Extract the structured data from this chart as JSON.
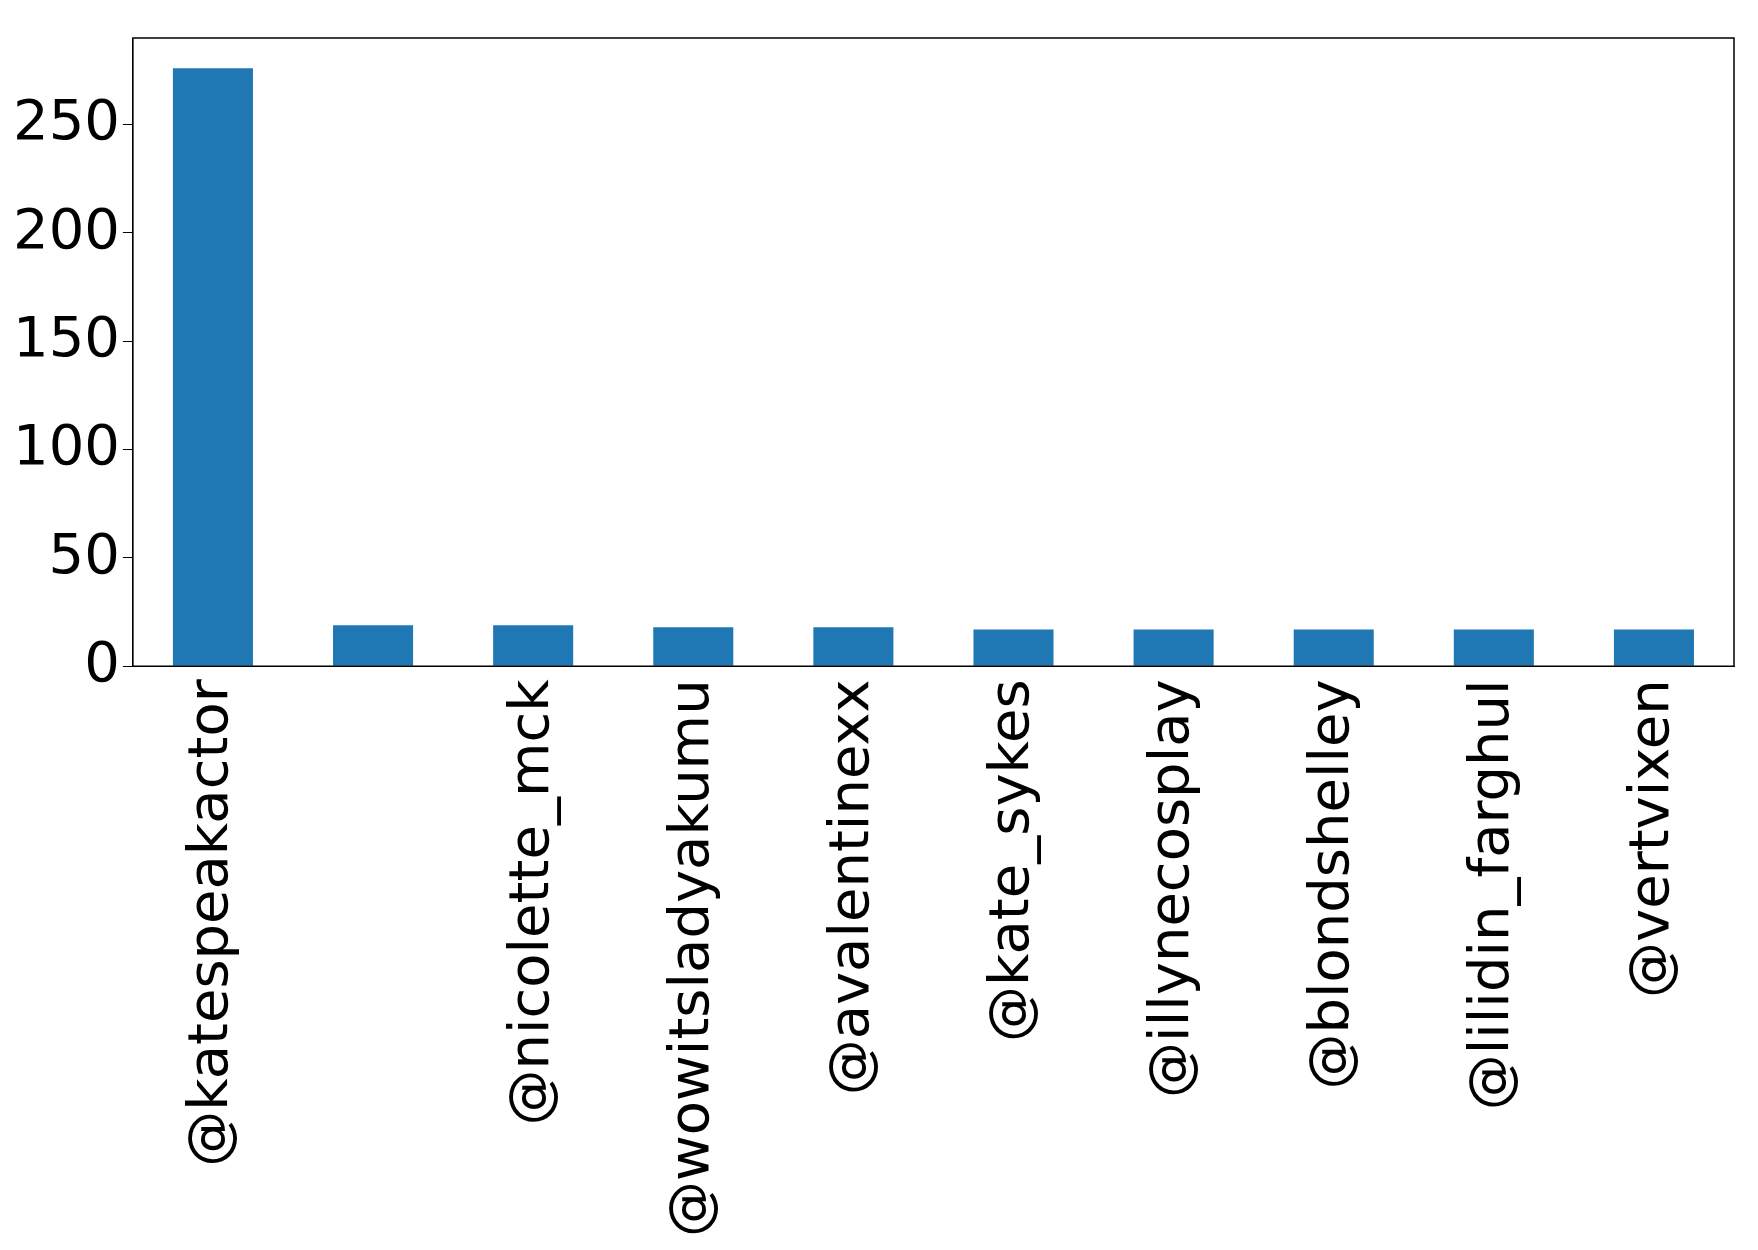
{
  "chart_data": {
    "type": "bar",
    "categories": [
      "@katespeakactor",
      null,
      "@nicolette_mck",
      "@wowitsladyakumu",
      "@avalentinexx",
      "@kate_sykes",
      "@illynecosplay",
      "@blondshelley",
      "@lilidin_farghul",
      "@vertvixen"
    ],
    "values": [
      276,
      19,
      19,
      18,
      18,
      17,
      17,
      17,
      17,
      17
    ],
    "color": "#1f77b4",
    "ylim": [
      0,
      290
    ],
    "yticks": [
      0,
      50,
      100,
      150,
      200,
      250
    ],
    "grid": false,
    "legend": false
  }
}
